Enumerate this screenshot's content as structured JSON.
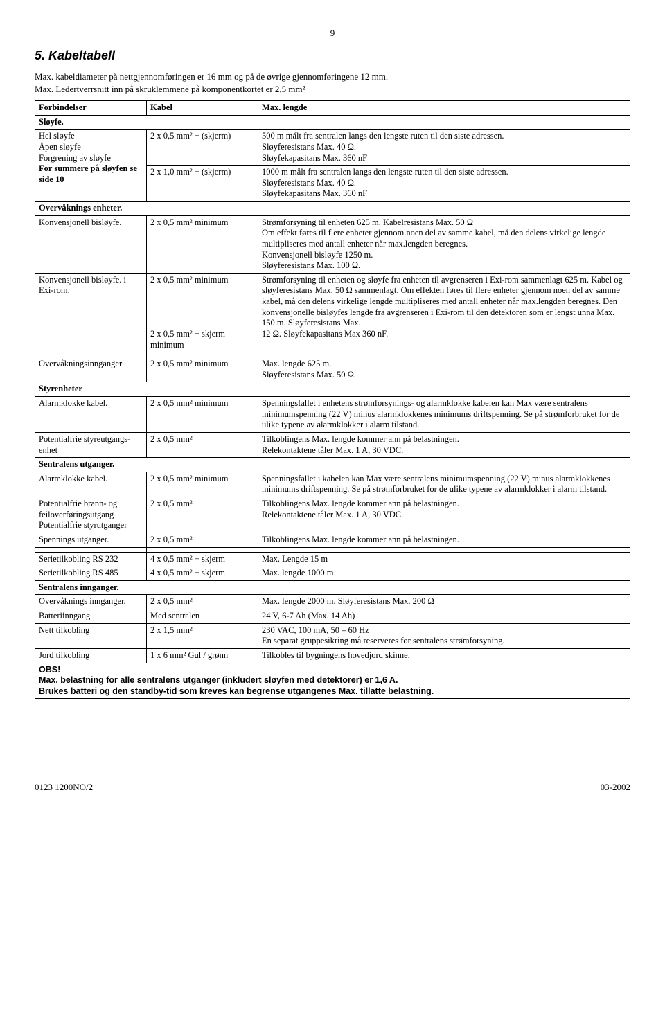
{
  "pageNumber": "9",
  "heading": "5. Kabeltabell",
  "intro1": "Max. kabeldiameter på nettgjennomføringen er 16 mm og på de øvrige gjennomføringene 12 mm.",
  "intro2": "Max. Ledertverrsnitt inn på skruklemmene på komponentkortet er 2,5 mm²",
  "headers": {
    "c1": "Forbindelser",
    "c2": "Kabel",
    "c3": "Max. lengde"
  },
  "s_sloyfe": "Sløyfe.",
  "r1": {
    "c1": "Hel sløyfe\nÅpen sløyfe\nForgrening av sløyfe",
    "c2": "2 x 0,5 mm² + (skjerm)",
    "c3": "500 m målt fra sentralen langs den lengste ruten til den siste adressen.\nSløyferesistans Max. 40 Ω.\nSløyfekapasitans Max. 360 nF"
  },
  "r2": {
    "c1b": "For summere på sløyfen se side 10",
    "c2": "2 x 1,0 mm² + (skjerm)",
    "c3": "1000 m målt fra sentralen langs den lengste ruten til den siste adressen.\nSløyferesistans Max. 40 Ω.\nSløyfekapasitans Max. 360 nF"
  },
  "s_overvak": "Overvåknings enheter.",
  "r3": {
    "c1": "Konvensjonell bisløyfe.",
    "c2": "2 x 0,5 mm² minimum",
    "c3": "Strømforsyning til enheten 625 m. Kabelresistans Max. 50 Ω\nOm effekt føres til flere enheter gjennom noen del av samme kabel, må den delens virkelige lengde multipliseres med antall enheter når max.lengden beregnes.\nKonvensjonell bisløyfe 1250 m.\nSløyferesistans Max. 100 Ω."
  },
  "r4": {
    "c1": "Konvensjonell bisløyfe. i Exi-rom.",
    "c2a": "2 x 0,5 mm² minimum",
    "c2b": "2 x 0,5 mm²  + skjerm minimum",
    "c3a": "Strømforsyning til enheten og sløyfe fra enheten til avgrenseren i Exi-rom sammenlagt 625 m. Kabel og sløyferesistans Max. 50 Ω sammenlagt. Om effekten føres til flere enheter gjennom noen del av samme kabel, må den delens virkelige lengde multipliseres med antall enheter når max.lengden beregnes. Den konvensjonelle bisløyfes lengde fra avgrenseren i Exi-rom til den detektoren som er lengst unna Max. 150 m. Sløyferesistans Max.",
    "c3b": "12 Ω. Sløyfekapasitans Max 360 nF."
  },
  "r5": {
    "c1": "Overvåkningsinnganger",
    "c2": "2 x 0,5 mm² minimum",
    "c3": "Max. lengde 625 m.\nSløyferesistans Max. 50 Ω."
  },
  "s_styrenheter": "Styrenheter",
  "r6": {
    "c1": "Alarmklokke kabel.",
    "c2": "2 x 0,5 mm² minimum",
    "c3": "Spenningsfallet i enhetens strømforsynings- og alarmklokke kabelen kan Max være sentralens minimumspenning (22 V) minus alarmklokkenes minimums driftspenning. Se på strømforbruket for de ulike typene av alarmklokker i alarm tilstand."
  },
  "r7": {
    "c1": "Potentialfrie styreutgangs-enhet",
    "c2": "2 x 0,5 mm²",
    "c3": "Tilkoblingens Max. lengde kommer ann på belastningen.\nRelekontaktene tåler Max. 1 A, 30 VDC."
  },
  "s_sentr_ut": "Sentralens utganger.",
  "r8": {
    "c1": "Alarmklokke kabel.",
    "c2": "2 x 0,5 mm² minimum",
    "c3": "Spenningsfallet i kabelen kan Max være sentralens minimumspenning (22 V) minus alarmklokkenes minimums driftspenning. Se på strømforbruket for de ulike typene av alarmklokker i alarm tilstand."
  },
  "r9": {
    "c1": "Potentialfrie brann- og feiloverføringsutgang\nPotentialfrie styrutganger",
    "c2": "2 x 0,5 mm²",
    "c3": "Tilkoblingens Max. lengde kommer ann på belastningen.\nRelekontaktene tåler Max. 1 A, 30 VDC."
  },
  "r10": {
    "c1": "Spennings utganger.",
    "c2": "2 x 0,5 mm²",
    "c3": "Tilkoblingens Max. lengde kommer ann på belastningen."
  },
  "r11": {
    "c1": "Serietilkobling RS 232",
    "c2": "4 x 0,5 mm² + skjerm",
    "c3": "Max. Lengde 15 m"
  },
  "r12": {
    "c1": "Serietilkobling RS 485",
    "c2": "4 x 0,5 mm² + skjerm",
    "c3": "Max. lengde 1000 m"
  },
  "s_sentr_inn": "Sentralens innganger.",
  "r13": {
    "c1": "Overvåknings innganger.",
    "c2": "2 x 0,5 mm²",
    "c3": "Max. lengde 2000 m. Sløyferesistans Max. 200 Ω"
  },
  "r14": {
    "c1": "Batteriinngang",
    "c2": "Med sentralen",
    "c3": "24 V, 6-7 Ah (Max. 14 Ah)"
  },
  "r15": {
    "c1": "Nett tilkobling",
    "c2": "2 x 1,5 mm²",
    "c3": "230 VAC, 100 mA, 50 – 60 Hz\nEn separat gruppesikring må reserveres for sentralens strømforsyning."
  },
  "r16": {
    "c1": "Jord tilkobling",
    "c2": "1 x 6 mm² Gul / grønn",
    "c3": "Tilkobles til bygningens hovedjord skinne."
  },
  "obs": "OBS!",
  "note1": "Max. belastning for alle sentralens utganger (inkludert sløyfen med detektorer) er 1,6 A.",
  "note2": "Brukes batteri og den standby-tid som kreves kan begrense utgangenes Max. tillatte belastning.",
  "footerLeft": "0123 1200NO/2",
  "footerRight": "03-2002"
}
